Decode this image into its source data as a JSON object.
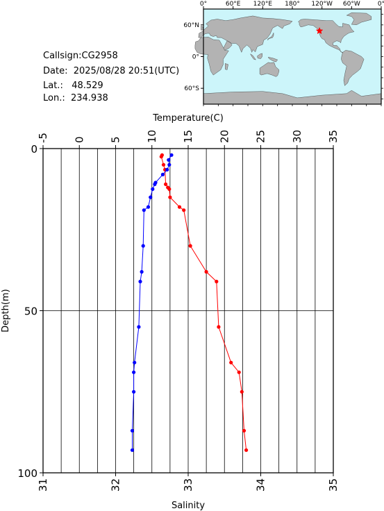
{
  "station": {
    "callsign": "Callsign:CG2958",
    "date": "Date:  2025/08/28 20:51(UTC)",
    "lat": "Lat.:   48.529",
    "lon": "Lon.:  234.938"
  },
  "map": {
    "lon_labels": [
      "0°",
      "60°E",
      "120°E",
      "180°",
      "120°W",
      "60°W",
      "0°"
    ],
    "lat_labels": [
      "60°N",
      "0°",
      "60°S"
    ],
    "marker_lon": 234.938,
    "marker_lat": 48.529,
    "ocean_color": "#ccf5fa",
    "land_color": "#b3b3b3",
    "marker_color": "#ff0000",
    "marker_icon": "star-icon"
  },
  "chart_data": {
    "type": "line",
    "ylabel": "Depth(m)",
    "ylim": [
      0,
      100
    ],
    "y_inverted": true,
    "y_ticks": [
      0,
      50,
      100
    ],
    "top_axis": {
      "label": "Temperature(C)",
      "lim": [
        -5,
        35
      ],
      "ticks": [
        -5,
        0,
        5,
        10,
        15,
        20,
        25,
        30,
        35
      ]
    },
    "bottom_axis": {
      "label": "Salinity",
      "lim": [
        31,
        35
      ],
      "ticks": [
        31,
        32,
        33,
        34,
        35
      ]
    },
    "grid": true,
    "series": [
      {
        "axis": "top",
        "color": "#ff0000",
        "depth": [
          2,
          2.5,
          5,
          6.5,
          11,
          12,
          12.5,
          15,
          18,
          19,
          30,
          38,
          41,
          55,
          66,
          69,
          75,
          87,
          93
        ],
        "values": [
          11.4,
          11.3,
          11.6,
          11.8,
          11.9,
          12.2,
          12.4,
          12.5,
          13.8,
          14.4,
          15.3,
          17.5,
          18.9,
          19.2,
          20.9,
          22.0,
          22.4,
          22.7,
          23.0
        ]
      },
      {
        "axis": "bottom",
        "color": "#0000ff",
        "depth": [
          2,
          3.5,
          5,
          6.5,
          8,
          10.5,
          11,
          12.5,
          15,
          18,
          19,
          30,
          38,
          41,
          55,
          66,
          69,
          75,
          87,
          93
        ],
        "values": [
          32.77,
          32.73,
          32.74,
          32.71,
          32.65,
          32.55,
          32.54,
          32.51,
          32.48,
          32.45,
          32.39,
          32.38,
          32.36,
          32.34,
          32.32,
          32.26,
          32.25,
          32.25,
          32.23,
          32.23
        ]
      }
    ]
  }
}
